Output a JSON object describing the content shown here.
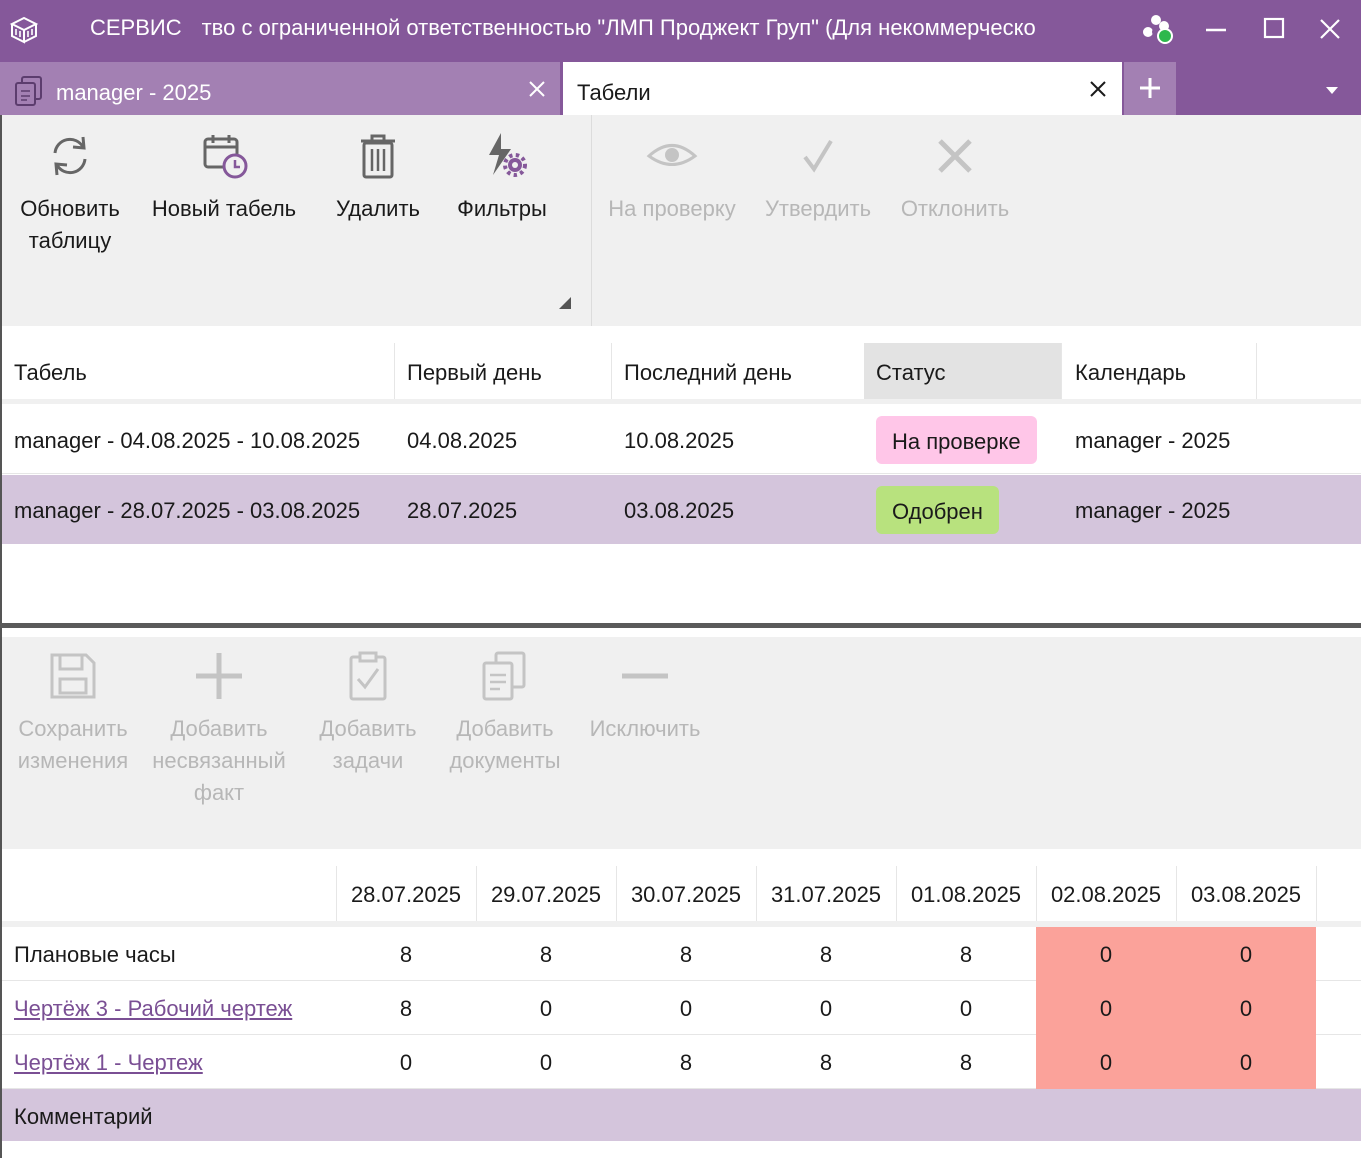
{
  "window": {
    "title_left": "СЕРВИС",
    "title_right": "тво с ограниченной ответственностью \"ЛМП Проджект Груп\" (Для некоммерческо"
  },
  "tabs": [
    {
      "label": "manager - 2025",
      "active": false
    },
    {
      "label": "Табели",
      "active": true
    }
  ],
  "toolbar_top": {
    "refresh": "Обновить\nтаблицу",
    "new_timesheet": "Новый табель",
    "delete": "Удалить",
    "filters": "Фильтры",
    "to_review": "На проверку",
    "approve": "Утвердить",
    "reject": "Отклонить"
  },
  "timesheets": {
    "columns": [
      "Табель",
      "Первый день",
      "Последний день",
      "Статус",
      "Календарь"
    ],
    "rows": [
      {
        "name": "manager - 04.08.2025 - 10.08.2025",
        "first_day": "04.08.2025",
        "last_day": "10.08.2025",
        "status": "На проверке",
        "calendar": "manager - 2025"
      },
      {
        "name": "manager - 28.07.2025 - 03.08.2025",
        "first_day": "28.07.2025",
        "last_day": "03.08.2025",
        "status": "Одобрен",
        "calendar": "manager - 2025"
      }
    ]
  },
  "toolbar_bottom": {
    "save": "Сохранить\nизменения",
    "add_unlinked": "Добавить\nнесвязанный\nфакт",
    "add_tasks": "Добавить\nзадачи",
    "add_documents": "Добавить\nдокументы",
    "exclude": "Исключить"
  },
  "hours": {
    "dates": [
      "28.07.2025",
      "29.07.2025",
      "30.07.2025",
      "31.07.2025",
      "01.08.2025",
      "02.08.2025",
      "03.08.2025"
    ],
    "rows": [
      {
        "label": "Плановые часы",
        "values": [
          "8",
          "8",
          "8",
          "8",
          "8",
          "0",
          "0"
        ]
      },
      {
        "label": "Чертёж 3 - Рабочий чертеж",
        "values": [
          "8",
          "0",
          "0",
          "0",
          "0",
          "0",
          "0"
        ]
      },
      {
        "label": "Чертёж 1 - Чертеж",
        "values": [
          "0",
          "0",
          "8",
          "8",
          "8",
          "0",
          "0"
        ]
      }
    ],
    "comment_label": "Комментарий"
  },
  "colors": {
    "accent": "#85589a",
    "tab_inactive": "#a380b3",
    "selected_row": "#d4c5dc",
    "status_review": "#ffc6e8",
    "status_approved": "#b8e27e",
    "weekend_cell": "#fba29a"
  }
}
